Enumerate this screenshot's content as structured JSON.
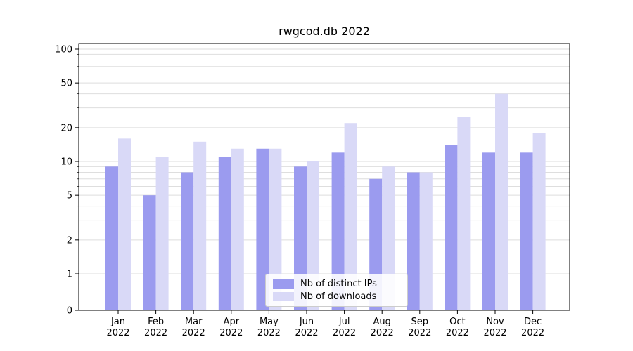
{
  "chart_data": {
    "type": "bar",
    "title": "rwgcod.db 2022",
    "categories": [
      "Jan",
      "Feb",
      "Mar",
      "Apr",
      "May",
      "Jun",
      "Jul",
      "Aug",
      "Sep",
      "Oct",
      "Nov",
      "Dec"
    ],
    "year": "2022",
    "series": [
      {
        "key": "distinct-ips",
        "name": "Nb of distinct IPs",
        "color": "#9b9bef",
        "values": [
          9,
          5,
          8,
          11,
          13,
          9,
          12,
          7,
          8,
          14,
          12,
          12
        ]
      },
      {
        "key": "downloads",
        "name": "Nb of downloads",
        "color": "#d9d9f7",
        "values": [
          16,
          11,
          15,
          13,
          13,
          10,
          22,
          9,
          8,
          25,
          40,
          18
        ]
      }
    ],
    "yscale": "symlog",
    "ylim": [
      0,
      130
    ],
    "yticks": [
      100,
      50,
      20,
      10,
      5,
      2,
      1,
      0
    ],
    "gridlines": [
      1,
      2,
      3,
      4,
      5,
      6,
      7,
      8,
      9,
      10,
      20,
      30,
      40,
      50,
      60,
      70,
      80,
      90,
      100
    ],
    "legend_position": "lower center",
    "grid": true,
    "colors": {
      "grid": "#dedede",
      "axis": "#000000",
      "text": "#000000"
    }
  }
}
